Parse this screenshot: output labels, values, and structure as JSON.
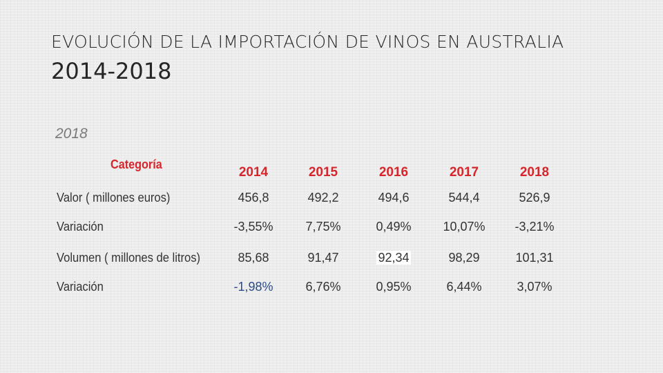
{
  "slide": {
    "title_line1": "EVOLUCIÓN DE LA IMPORTACIÓN DE VINOS EN AUSTRALIA",
    "title_line2": "2014-2018"
  },
  "table": {
    "caption": "2018",
    "category_header": "Categoría",
    "years": [
      "2014",
      "2015",
      "2016",
      "2017",
      "2018"
    ],
    "rows": [
      {
        "label": "Valor ( millones euros)",
        "values": [
          "456,8",
          "492,2",
          "494,6",
          "544,4",
          "526,9"
        ]
      },
      {
        "label": "Variación",
        "values": [
          "-3,55%",
          "7,75%",
          "0,49%",
          "10,07%",
          "-3,21%"
        ]
      },
      {
        "label": "Volumen ( millones de litros)",
        "values": [
          "85,68",
          "91,47",
          "92,34",
          "98,29",
          "101,31"
        ]
      },
      {
        "label": "Variación",
        "values": [
          "-1,98%",
          "6,76%",
          "0,95%",
          "6,44%",
          "3,07%"
        ]
      }
    ]
  },
  "colors": {
    "header_red": "#d6262b",
    "highlight_blue": "#2a4a8a",
    "text": "#333333"
  }
}
